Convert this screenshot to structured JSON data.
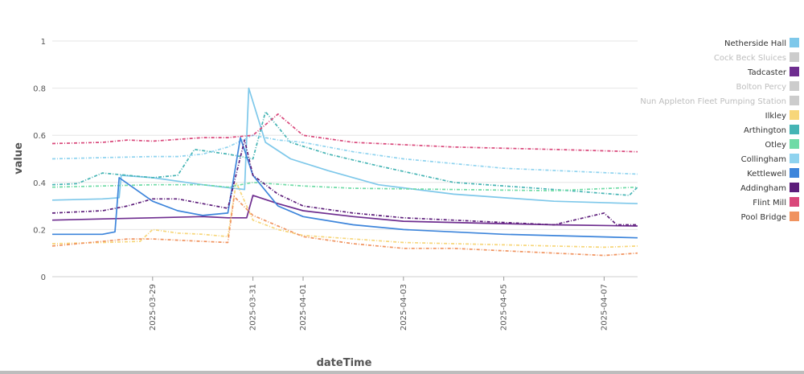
{
  "chart_data": {
    "type": "line",
    "xlabel": "dateTime",
    "ylabel": "value",
    "ylim": [
      0,
      1
    ],
    "xlim": [
      "2025-03-27T00:00",
      "2025-04-07T16:00"
    ],
    "y_ticks": [
      "0",
      "0.2",
      "0.4",
      "0.6",
      "0.8",
      "1"
    ],
    "x_ticks": [
      "2025-03-29",
      "2025-03-31",
      "2025-04-01",
      "2025-04-03",
      "2025-04-05",
      "2025-04-07"
    ],
    "grid": true,
    "legend_position": "right",
    "series": [
      {
        "name": "Netherside Hall",
        "color": "#7ec8ea",
        "style": "solid",
        "hidden": false,
        "points": [
          [
            "2025-03-27T00:00",
            0.325
          ],
          [
            "2025-03-28T00:00",
            0.33
          ],
          [
            "2025-03-28T08:00",
            0.335
          ],
          [
            "2025-03-28T09:00",
            0.43
          ],
          [
            "2025-03-29T00:00",
            0.42
          ],
          [
            "2025-03-30T00:00",
            0.39
          ],
          [
            "2025-03-30T20:00",
            0.37
          ],
          [
            "2025-03-30T22:00",
            0.8
          ],
          [
            "2025-03-31T06:00",
            0.57
          ],
          [
            "2025-03-31T18:00",
            0.5
          ],
          [
            "2025-04-01T12:00",
            0.45
          ],
          [
            "2025-04-02T12:00",
            0.39
          ],
          [
            "2025-04-04T00:00",
            0.35
          ],
          [
            "2025-04-06T00:00",
            0.32
          ],
          [
            "2025-04-07T16:00",
            0.31
          ]
        ]
      },
      {
        "name": "Cock Beck Sluices",
        "color": "#cccccc",
        "style": "solid",
        "hidden": true,
        "points": []
      },
      {
        "name": "Tadcaster",
        "color": "#6e2d8f",
        "style": "solid",
        "hidden": false,
        "points": [
          [
            "2025-03-27T00:00",
            0.24
          ],
          [
            "2025-03-28T00:00",
            0.245
          ],
          [
            "2025-03-29T00:00",
            0.25
          ],
          [
            "2025-03-30T00:00",
            0.255
          ],
          [
            "2025-03-30T12:00",
            0.25
          ],
          [
            "2025-03-30T21:00",
            0.25
          ],
          [
            "2025-03-31T00:00",
            0.345
          ],
          [
            "2025-03-31T12:00",
            0.31
          ],
          [
            "2025-04-01T00:00",
            0.28
          ],
          [
            "2025-04-02T00:00",
            0.255
          ],
          [
            "2025-04-03T00:00",
            0.235
          ],
          [
            "2025-04-04T00:00",
            0.23
          ],
          [
            "2025-04-05T00:00",
            0.225
          ],
          [
            "2025-04-06T00:00",
            0.22
          ],
          [
            "2025-04-07T16:00",
            0.215
          ]
        ]
      },
      {
        "name": "Bolton Percy",
        "color": "#cccccc",
        "style": "solid",
        "hidden": true,
        "points": []
      },
      {
        "name": "Nun Appleton Fleet Pumping Station",
        "color": "#cccccc",
        "style": "solid",
        "hidden": true,
        "points": []
      },
      {
        "name": "Ilkley",
        "color": "#f7d67a",
        "style": "dashed",
        "hidden": false,
        "points": [
          [
            "2025-03-27T00:00",
            0.14
          ],
          [
            "2025-03-28T00:00",
            0.145
          ],
          [
            "2025-03-28T18:00",
            0.15
          ],
          [
            "2025-03-29T00:00",
            0.2
          ],
          [
            "2025-03-29T12:00",
            0.185
          ],
          [
            "2025-03-30T00:00",
            0.18
          ],
          [
            "2025-03-30T12:00",
            0.17
          ],
          [
            "2025-03-30T16:00",
            0.4
          ],
          [
            "2025-03-31T00:00",
            0.24
          ],
          [
            "2025-03-31T12:00",
            0.2
          ],
          [
            "2025-04-01T00:00",
            0.175
          ],
          [
            "2025-04-02T00:00",
            0.16
          ],
          [
            "2025-04-03T00:00",
            0.145
          ],
          [
            "2025-04-05T00:00",
            0.135
          ],
          [
            "2025-04-07T00:00",
            0.125
          ],
          [
            "2025-04-07T16:00",
            0.13
          ]
        ]
      },
      {
        "name": "Arthington",
        "color": "#45b4b4",
        "style": "dashed",
        "hidden": false,
        "points": [
          [
            "2025-03-27T00:00",
            0.39
          ],
          [
            "2025-03-27T12:00",
            0.395
          ],
          [
            "2025-03-28T00:00",
            0.44
          ],
          [
            "2025-03-28T12:00",
            0.43
          ],
          [
            "2025-03-29T00:00",
            0.42
          ],
          [
            "2025-03-29T12:00",
            0.43
          ],
          [
            "2025-03-29T20:00",
            0.54
          ],
          [
            "2025-03-30T12:00",
            0.52
          ],
          [
            "2025-03-31T00:00",
            0.5
          ],
          [
            "2025-03-31T06:00",
            0.7
          ],
          [
            "2025-03-31T18:00",
            0.57
          ],
          [
            "2025-04-01T12:00",
            0.52
          ],
          [
            "2025-04-02T12:00",
            0.47
          ],
          [
            "2025-04-04T00:00",
            0.4
          ],
          [
            "2025-04-06T00:00",
            0.37
          ],
          [
            "2025-04-07T12:00",
            0.345
          ],
          [
            "2025-04-07T16:00",
            0.38
          ]
        ]
      },
      {
        "name": "Otley",
        "color": "#6fdba6",
        "style": "dashed",
        "hidden": false,
        "points": [
          [
            "2025-03-27T00:00",
            0.38
          ],
          [
            "2025-03-28T00:00",
            0.385
          ],
          [
            "2025-03-29T00:00",
            0.39
          ],
          [
            "2025-03-30T00:00",
            0.39
          ],
          [
            "2025-03-30T12:00",
            0.38
          ],
          [
            "2025-03-31T00:00",
            0.4
          ],
          [
            "2025-04-01T00:00",
            0.385
          ],
          [
            "2025-04-02T00:00",
            0.375
          ],
          [
            "2025-04-04T00:00",
            0.37
          ],
          [
            "2025-04-06T00:00",
            0.365
          ],
          [
            "2025-04-07T16:00",
            0.38
          ]
        ]
      },
      {
        "name": "Collingham",
        "color": "#8fd3ef",
        "style": "dashed",
        "hidden": false,
        "points": [
          [
            "2025-03-27T00:00",
            0.5
          ],
          [
            "2025-03-28T00:00",
            0.505
          ],
          [
            "2025-03-29T00:00",
            0.51
          ],
          [
            "2025-03-29T12:00",
            0.51
          ],
          [
            "2025-03-30T00:00",
            0.52
          ],
          [
            "2025-03-30T12:00",
            0.55
          ],
          [
            "2025-03-31T00:00",
            0.6
          ],
          [
            "2025-03-31T12:00",
            0.58
          ],
          [
            "2025-04-01T00:00",
            0.57
          ],
          [
            "2025-04-02T00:00",
            0.53
          ],
          [
            "2025-04-03T00:00",
            0.5
          ],
          [
            "2025-04-04T00:00",
            0.48
          ],
          [
            "2025-04-05T00:00",
            0.46
          ],
          [
            "2025-04-07T16:00",
            0.435
          ]
        ]
      },
      {
        "name": "Kettlewell",
        "color": "#3d85db",
        "style": "solid",
        "hidden": false,
        "points": [
          [
            "2025-03-27T00:00",
            0.18
          ],
          [
            "2025-03-28T00:00",
            0.18
          ],
          [
            "2025-03-28T06:00",
            0.19
          ],
          [
            "2025-03-28T08:00",
            0.42
          ],
          [
            "2025-03-29T00:00",
            0.32
          ],
          [
            "2025-03-29T12:00",
            0.28
          ],
          [
            "2025-03-30T00:00",
            0.26
          ],
          [
            "2025-03-30T12:00",
            0.27
          ],
          [
            "2025-03-30T18:00",
            0.59
          ],
          [
            "2025-03-31T00:00",
            0.43
          ],
          [
            "2025-03-31T12:00",
            0.3
          ],
          [
            "2025-04-01T00:00",
            0.255
          ],
          [
            "2025-04-02T00:00",
            0.22
          ],
          [
            "2025-04-03T00:00",
            0.2
          ],
          [
            "2025-04-05T00:00",
            0.18
          ],
          [
            "2025-04-07T16:00",
            0.165
          ]
        ]
      },
      {
        "name": "Addingham",
        "color": "#5c1d7a",
        "style": "dashed",
        "hidden": false,
        "points": [
          [
            "2025-03-27T00:00",
            0.27
          ],
          [
            "2025-03-28T00:00",
            0.28
          ],
          [
            "2025-03-28T12:00",
            0.3
          ],
          [
            "2025-03-29T00:00",
            0.33
          ],
          [
            "2025-03-29T12:00",
            0.33
          ],
          [
            "2025-03-30T00:00",
            0.31
          ],
          [
            "2025-03-30T12:00",
            0.29
          ],
          [
            "2025-03-30T20:00",
            0.58
          ],
          [
            "2025-03-31T00:00",
            0.43
          ],
          [
            "2025-03-31T12:00",
            0.35
          ],
          [
            "2025-04-01T00:00",
            0.3
          ],
          [
            "2025-04-02T00:00",
            0.27
          ],
          [
            "2025-04-03T00:00",
            0.25
          ],
          [
            "2025-04-04T00:00",
            0.24
          ],
          [
            "2025-04-05T00:00",
            0.23
          ],
          [
            "2025-04-06T00:00",
            0.22
          ],
          [
            "2025-04-07T00:00",
            0.27
          ],
          [
            "2025-04-07T06:00",
            0.22
          ],
          [
            "2025-04-07T16:00",
            0.22
          ]
        ]
      },
      {
        "name": "Flint Mill",
        "color": "#d9477a",
        "style": "dashed",
        "hidden": false,
        "points": [
          [
            "2025-03-27T00:00",
            0.565
          ],
          [
            "2025-03-28T00:00",
            0.57
          ],
          [
            "2025-03-28T12:00",
            0.58
          ],
          [
            "2025-03-29T00:00",
            0.575
          ],
          [
            "2025-03-30T00:00",
            0.59
          ],
          [
            "2025-03-30T12:00",
            0.59
          ],
          [
            "2025-03-31T00:00",
            0.6
          ],
          [
            "2025-03-31T12:00",
            0.69
          ],
          [
            "2025-04-01T00:00",
            0.6
          ],
          [
            "2025-04-02T00:00",
            0.57
          ],
          [
            "2025-04-03T00:00",
            0.56
          ],
          [
            "2025-04-04T00:00",
            0.55
          ],
          [
            "2025-04-05T00:00",
            0.545
          ],
          [
            "2025-04-06T00:00",
            0.54
          ],
          [
            "2025-04-07T16:00",
            0.53
          ]
        ]
      },
      {
        "name": "Pool Bridge",
        "color": "#f0935f",
        "style": "dashed",
        "hidden": false,
        "points": [
          [
            "2025-03-27T00:00",
            0.13
          ],
          [
            "2025-03-27T12:00",
            0.14
          ],
          [
            "2025-03-28T00:00",
            0.15
          ],
          [
            "2025-03-28T12:00",
            0.16
          ],
          [
            "2025-03-29T00:00",
            0.16
          ],
          [
            "2025-03-29T12:00",
            0.155
          ],
          [
            "2025-03-30T00:00",
            0.15
          ],
          [
            "2025-03-30T12:00",
            0.145
          ],
          [
            "2025-03-30T15:00",
            0.34
          ],
          [
            "2025-03-31T00:00",
            0.26
          ],
          [
            "2025-04-01T00:00",
            0.17
          ],
          [
            "2025-04-02T00:00",
            0.14
          ],
          [
            "2025-04-03T00:00",
            0.12
          ],
          [
            "2025-04-04T00:00",
            0.12
          ],
          [
            "2025-04-05T00:00",
            0.11
          ],
          [
            "2025-04-06T00:00",
            0.1
          ],
          [
            "2025-04-07T00:00",
            0.09
          ],
          [
            "2025-04-07T16:00",
            0.1
          ]
        ]
      }
    ]
  }
}
